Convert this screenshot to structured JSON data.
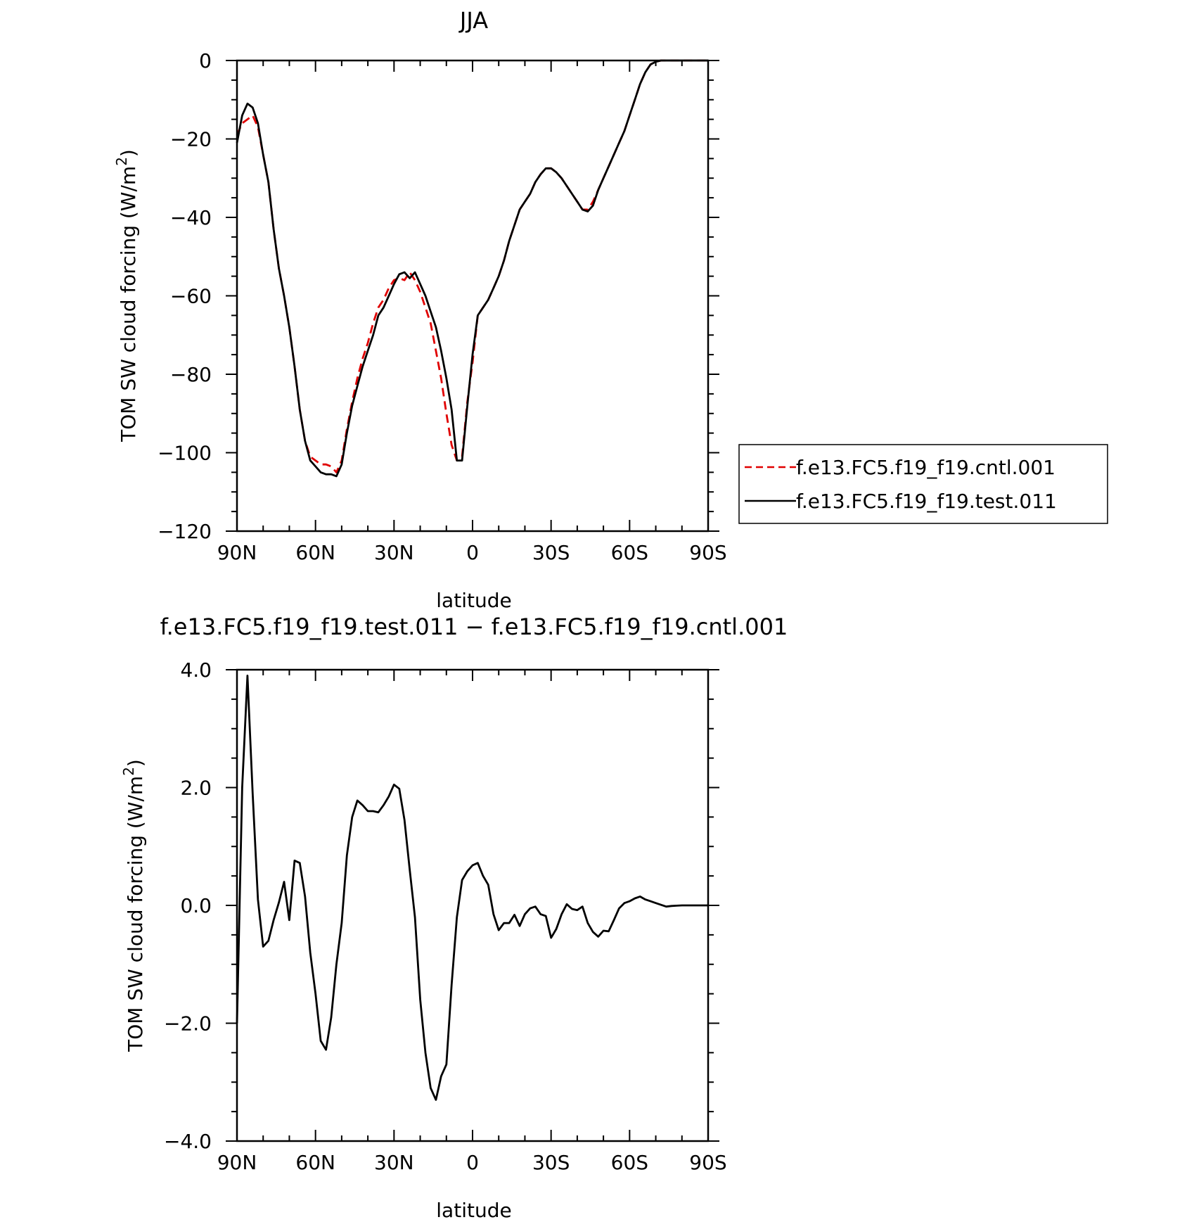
{
  "top_panel": {
    "title": "JJA",
    "ylabel": "TOM SW cloud forcing (W/m",
    "ylabel_sup": "2",
    "ylabel_close": ")",
    "xlabel": "latitude"
  },
  "bottom_panel": {
    "title": "f.e13.FC5.f19_f19.test.011 − f.e13.FC5.f19_f19.cntl.001",
    "ylabel": "TOM SW cloud forcing (W/m",
    "ylabel_sup": "2",
    "ylabel_close": ")",
    "xlabel": "latitude"
  },
  "legend": {
    "items": [
      {
        "label": "f.e13.FC5.f19_f19.cntl.001",
        "color": "#e00000",
        "dash": true
      },
      {
        "label": "f.e13.FC5.f19_f19.test.011",
        "color": "#000000",
        "dash": false
      }
    ]
  },
  "chart_data": [
    {
      "type": "line",
      "title": "JJA",
      "xlabel": "latitude",
      "ylabel": "TOM SW cloud forcing (W/m2)",
      "xlim": [
        90,
        -90
      ],
      "ylim": [
        -120,
        0
      ],
      "xticks": [
        90,
        60,
        30,
        0,
        -30,
        -60,
        -90
      ],
      "xticklabels": [
        "90N",
        "60N",
        "30N",
        "0",
        "30S",
        "60S",
        "90S"
      ],
      "yticks": [
        0,
        -20,
        -40,
        -60,
        -80,
        -100,
        -120
      ],
      "yticklabels": [
        "0",
        "−20",
        "−40",
        "−60",
        "−80",
        "−100",
        "−120"
      ],
      "legend_position": "right",
      "series": [
        {
          "name": "f.e13.FC5.f19_f19.cntl.001",
          "color": "#e00000",
          "style": "dashed",
          "x": [
            90,
            88,
            86,
            84,
            82,
            80,
            78,
            76,
            74,
            72,
            70,
            68,
            66,
            64,
            62,
            60,
            58,
            56,
            54,
            52,
            50,
            48,
            46,
            44,
            42,
            40,
            38,
            36,
            34,
            32,
            30,
            28,
            26,
            24,
            22,
            20,
            18,
            16,
            14,
            12,
            10,
            8,
            6,
            4,
            2,
            0,
            -2,
            -4,
            -6,
            -8,
            -10,
            -12,
            -14,
            -16,
            -18,
            -20,
            -22,
            -24,
            -26,
            -28,
            -30,
            -32,
            -34,
            -36,
            -38,
            -40,
            -42,
            -44,
            -46,
            -48,
            -50,
            -52,
            -54,
            -56,
            -58,
            -60,
            -62,
            -64,
            -66,
            -68,
            -70,
            -72,
            -74,
            -76,
            -78,
            -80,
            -82,
            -84,
            -86,
            -88,
            -90
          ],
          "y": [
            -19,
            -16,
            -15,
            -14,
            -17,
            -24,
            -31,
            -43,
            -53,
            -60,
            -68,
            -78,
            -89,
            -97,
            -101,
            -102,
            -103,
            -103,
            -103.5,
            -105,
            -102,
            -94,
            -87,
            -81,
            -76,
            -72,
            -67,
            -63,
            -61,
            -58,
            -56,
            -55.5,
            -56,
            -54,
            -56,
            -59,
            -63,
            -67,
            -74,
            -81,
            -90,
            -98,
            -102,
            -101,
            -87,
            -77,
            -65,
            -63,
            -61,
            -58,
            -55,
            -51,
            -46,
            -42,
            -38,
            -36,
            -34,
            -31,
            -29,
            -27.5,
            -27.5,
            -28.5,
            -30,
            -32,
            -34,
            -36,
            -38,
            -38,
            -36,
            -33,
            -30,
            -27,
            -24,
            -21,
            -18,
            -14,
            -10,
            -6,
            -3,
            -1,
            -0.3,
            0,
            0,
            0,
            0,
            0,
            0,
            0,
            0,
            0,
            0
          ]
        },
        {
          "name": "f.e13.FC5.f19_f19.test.011",
          "color": "#000000",
          "style": "solid",
          "x": [
            90,
            88,
            86,
            84,
            82,
            80,
            78,
            76,
            74,
            72,
            70,
            68,
            66,
            64,
            62,
            60,
            58,
            56,
            54,
            52,
            50,
            48,
            46,
            44,
            42,
            40,
            38,
            36,
            34,
            32,
            30,
            28,
            26,
            24,
            22,
            20,
            18,
            16,
            14,
            12,
            10,
            8,
            6,
            4,
            2,
            0,
            -2,
            -4,
            -6,
            -8,
            -10,
            -12,
            -14,
            -16,
            -18,
            -20,
            -22,
            -24,
            -26,
            -28,
            -30,
            -32,
            -34,
            -36,
            -38,
            -40,
            -42,
            -44,
            -46,
            -48,
            -50,
            -52,
            -54,
            -56,
            -58,
            -60,
            -62,
            -64,
            -66,
            -68,
            -70,
            -72,
            -74,
            -76,
            -78,
            -80,
            -82,
            -84,
            -86,
            -88,
            -90
          ],
          "y": [
            -21,
            -14,
            -11,
            -12,
            -16,
            -24,
            -31,
            -43,
            -53,
            -60,
            -68,
            -78,
            -89,
            -97,
            -102,
            -103.5,
            -105,
            -105.5,
            -105.5,
            -106,
            -103,
            -95,
            -88,
            -83,
            -78,
            -74,
            -70,
            -65,
            -63,
            -60,
            -57,
            -54.5,
            -54,
            -55.5,
            -54,
            -57,
            -60,
            -64,
            -68,
            -74,
            -81,
            -89,
            -102,
            -102,
            -88,
            -75,
            -65,
            -63,
            -61,
            -58,
            -55,
            -51,
            -46,
            -42,
            -38,
            -36,
            -34,
            -31,
            -29,
            -27.5,
            -27.5,
            -28.5,
            -30,
            -32,
            -34,
            -36,
            -38,
            -38.5,
            -37,
            -33,
            -30,
            -27,
            -24,
            -21,
            -18,
            -14,
            -10,
            -6,
            -3,
            -1,
            -0.3,
            0,
            0,
            0,
            0,
            0,
            0,
            0,
            0,
            0,
            0
          ]
        }
      ]
    },
    {
      "type": "line",
      "title": "f.e13.FC5.f19_f19.test.011 − f.e13.FC5.f19_f19.cntl.001",
      "xlabel": "latitude",
      "ylabel": "TOM SW cloud forcing (W/m2)",
      "xlim": [
        90,
        -90
      ],
      "ylim": [
        -4,
        4
      ],
      "xticks": [
        90,
        60,
        30,
        0,
        -30,
        -60,
        -90
      ],
      "xticklabels": [
        "90N",
        "60N",
        "30N",
        "0",
        "30S",
        "60S",
        "90S"
      ],
      "yticks": [
        4,
        2,
        0,
        -2,
        -4
      ],
      "yticklabels": [
        "4.0",
        "2.0",
        "0.0",
        "−2.0",
        "−4.0"
      ],
      "series": [
        {
          "color": "#000000",
          "style": "solid",
          "x": [
            90,
            88,
            86,
            84,
            82,
            80,
            78,
            76,
            74,
            72,
            70,
            68,
            66,
            64,
            62,
            60,
            58,
            56,
            54,
            52,
            50,
            48,
            46,
            44,
            42,
            40,
            38,
            36,
            34,
            32,
            30,
            28,
            26,
            24,
            22,
            20,
            18,
            16,
            14,
            12,
            10,
            8,
            6,
            4,
            2,
            0,
            -2,
            -4,
            -6,
            -8,
            -10,
            -12,
            -14,
            -16,
            -18,
            -20,
            -22,
            -24,
            -26,
            -28,
            -30,
            -32,
            -34,
            -36,
            -38,
            -40,
            -42,
            -44,
            -46,
            -48,
            -50,
            -52,
            -54,
            -56,
            -58,
            -60,
            -62,
            -64,
            -66,
            -68,
            -70,
            -72,
            -74,
            -76,
            -78,
            -80,
            -82,
            -84,
            -86,
            -88,
            -90
          ],
          "y": [
            -2.0,
            2.0,
            3.9,
            1.9,
            0.1,
            -0.7,
            -0.6,
            -0.25,
            0.05,
            0.4,
            -0.25,
            0.76,
            0.72,
            0.15,
            -0.8,
            -1.5,
            -2.3,
            -2.45,
            -1.9,
            -1.0,
            -0.3,
            0.85,
            1.5,
            1.78,
            1.7,
            1.6,
            1.6,
            1.58,
            1.7,
            1.85,
            2.05,
            1.98,
            1.45,
            0.6,
            -0.2,
            -1.6,
            -2.5,
            -3.1,
            -3.3,
            -2.9,
            -2.7,
            -1.35,
            -0.2,
            0.43,
            0.58,
            0.68,
            0.72,
            0.5,
            0.35,
            -0.15,
            -0.42,
            -0.3,
            -0.3,
            -0.16,
            -0.35,
            -0.15,
            -0.05,
            -0.02,
            -0.15,
            -0.18,
            -0.55,
            -0.4,
            -0.15,
            0.02,
            -0.06,
            -0.08,
            -0.02,
            -0.3,
            -0.45,
            -0.53,
            -0.43,
            -0.44,
            -0.25,
            -0.05,
            0.04,
            0.07,
            0.12,
            0.15,
            0.1,
            0.07,
            0.04,
            0.01,
            -0.02,
            -0.01,
            -0.005,
            0,
            0,
            0,
            0,
            0,
            0
          ]
        }
      ]
    }
  ]
}
